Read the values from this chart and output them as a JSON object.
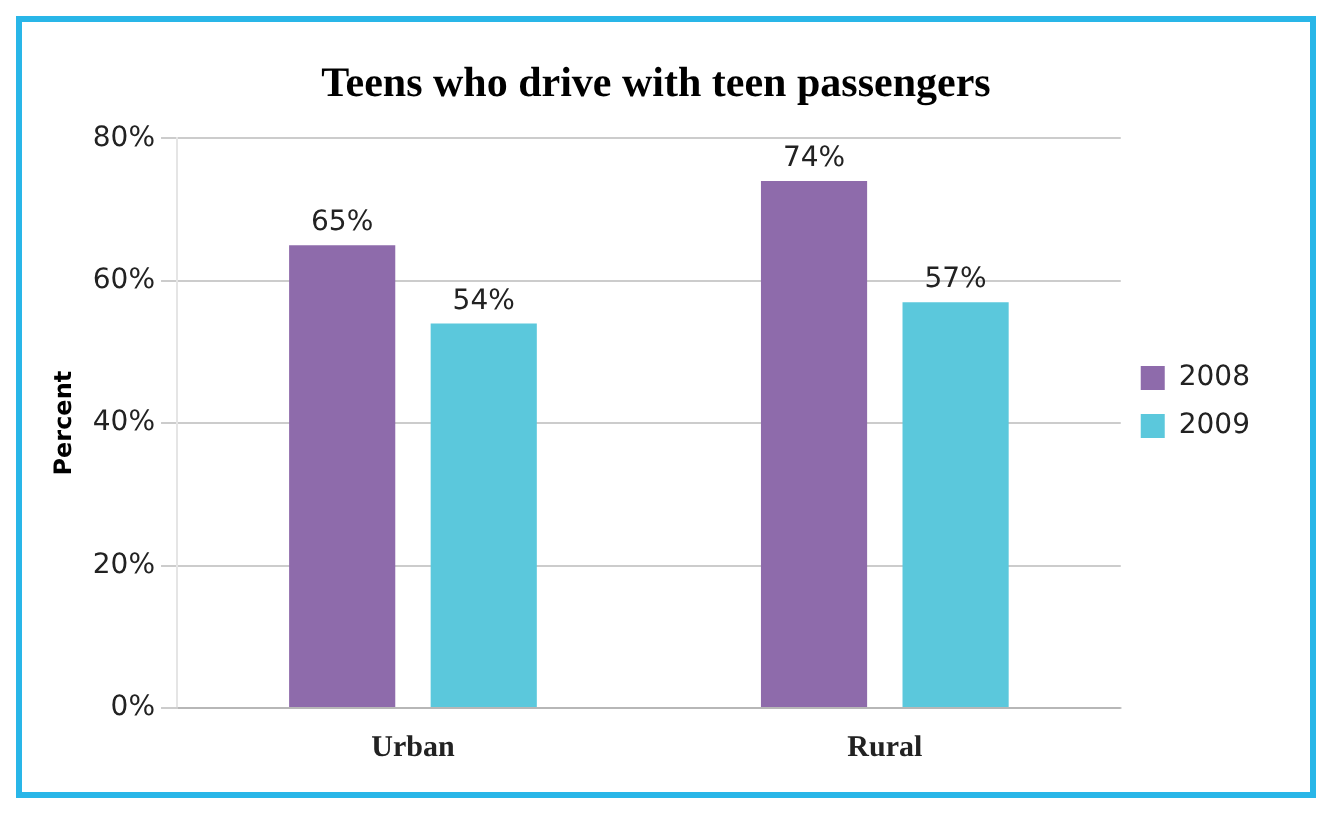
{
  "chart_data": {
    "type": "bar",
    "title": "Teens who drive with teen passengers",
    "ylabel": "Percent",
    "categories": [
      "Urban",
      "Rural"
    ],
    "series": [
      {
        "name": "2008",
        "color": "#8e6bab",
        "values": [
          65,
          74
        ],
        "value_labels": [
          "65%",
          "74%"
        ]
      },
      {
        "name": "2009",
        "color": "#5bc8dc",
        "values": [
          54,
          57
        ],
        "value_labels": [
          "54%",
          "57%"
        ]
      }
    ],
    "ylim": [
      0,
      80
    ],
    "yticks": [
      {
        "value": 0,
        "label": "0%"
      },
      {
        "value": 20,
        "label": "20%"
      },
      {
        "value": 40,
        "label": "40%"
      },
      {
        "value": 60,
        "label": "60%"
      },
      {
        "value": 80,
        "label": "80%"
      }
    ],
    "grid": "y",
    "legend": "right"
  }
}
